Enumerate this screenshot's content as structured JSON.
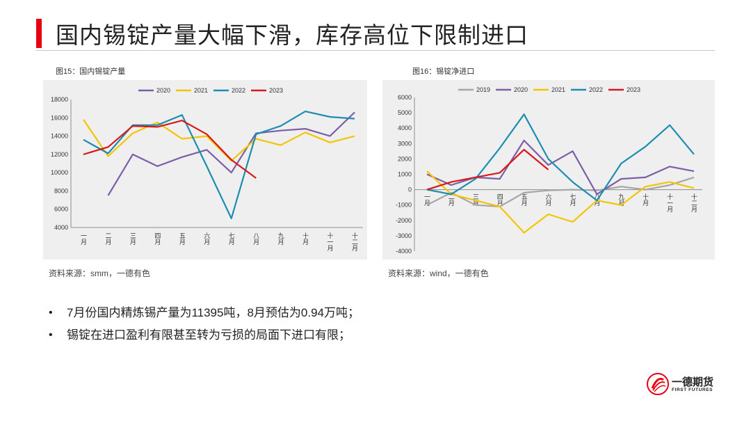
{
  "page": {
    "title": "国内锡锭产量大幅下滑，库存高位下限制进口",
    "accent_color": "#e60012"
  },
  "figures": [
    {
      "caption": "图15：国内锡锭产量",
      "source": "资料来源：smm，一德有色"
    },
    {
      "caption": "图16：锡锭净进口",
      "source": "资料来源：wind，一德有色"
    }
  ],
  "bullets": [
    "7月份国内精炼锡产量为11395吨，8月预估为0.94万吨；",
    "锡锭在进口盈利有限甚至转为亏损的局面下进口有限；"
  ],
  "logo": {
    "name": "一德期货",
    "sub": "FIRST FUTURES"
  },
  "chart_data": [
    {
      "type": "line",
      "categories": [
        "一月",
        "二月",
        "三月",
        "四月",
        "五月",
        "六月",
        "七月",
        "八月",
        "九月",
        "十月",
        "十一月",
        "十二月"
      ],
      "ylim": [
        4000,
        18000
      ],
      "yticks": [
        4000,
        6000,
        8000,
        10000,
        12000,
        14000,
        16000,
        18000
      ],
      "legend_position": "top",
      "series": [
        {
          "name": "2020",
          "color": "#7b5ea7",
          "values": [
            null,
            7500,
            12000,
            10700,
            11700,
            12500,
            10000,
            14300,
            14600,
            14800,
            14000,
            16600
          ]
        },
        {
          "name": "2021",
          "color": "#f5c400",
          "values": [
            15800,
            11800,
            14300,
            15500,
            13700,
            14000,
            11300,
            13700,
            13000,
            14400,
            13300,
            14000
          ]
        },
        {
          "name": "2022",
          "color": "#1b8db0",
          "values": [
            13600,
            12100,
            15200,
            15200,
            16300,
            10700,
            5000,
            14200,
            15100,
            16700,
            16100,
            15900
          ]
        },
        {
          "name": "2023",
          "color": "#d7191c",
          "values": [
            12000,
            12800,
            15100,
            15000,
            15700,
            14200,
            11400,
            9400,
            null,
            null,
            null,
            null
          ]
        }
      ]
    },
    {
      "type": "line",
      "categories": [
        "一月",
        "二月",
        "三月",
        "四月",
        "五月",
        "六月",
        "七月",
        "八月",
        "九月",
        "十月",
        "十一月",
        "十二月"
      ],
      "ylim": [
        -4000,
        6000
      ],
      "yticks": [
        -4000,
        -3000,
        -2000,
        -1000,
        0,
        1000,
        2000,
        3000,
        4000,
        5000,
        6000
      ],
      "legend_position": "top",
      "series": [
        {
          "name": "2019",
          "color": "#a6a6a6",
          "values": [
            -1000,
            -200,
            -1000,
            -1100,
            -200,
            -50,
            0,
            -50,
            200,
            0,
            300,
            800
          ]
        },
        {
          "name": "2020",
          "color": "#7b5ea7",
          "values": [
            1000,
            300,
            800,
            700,
            3200,
            1600,
            2500,
            -300,
            700,
            800,
            1500,
            1200
          ]
        },
        {
          "name": "2021",
          "color": "#f5c400",
          "values": [
            1200,
            -300,
            -700,
            -1100,
            -2800,
            -1600,
            -2100,
            -700,
            -1000,
            200,
            500,
            100
          ]
        },
        {
          "name": "2022",
          "color": "#1b8db0",
          "values": [
            0,
            -300,
            700,
            2700,
            4900,
            2000,
            500,
            -700,
            1700,
            2800,
            4200,
            2300
          ]
        },
        {
          "name": "2023",
          "color": "#d7191c",
          "values": [
            0,
            500,
            800,
            1100,
            2600,
            1300,
            null,
            null,
            null,
            null,
            null,
            null
          ]
        }
      ]
    }
  ]
}
